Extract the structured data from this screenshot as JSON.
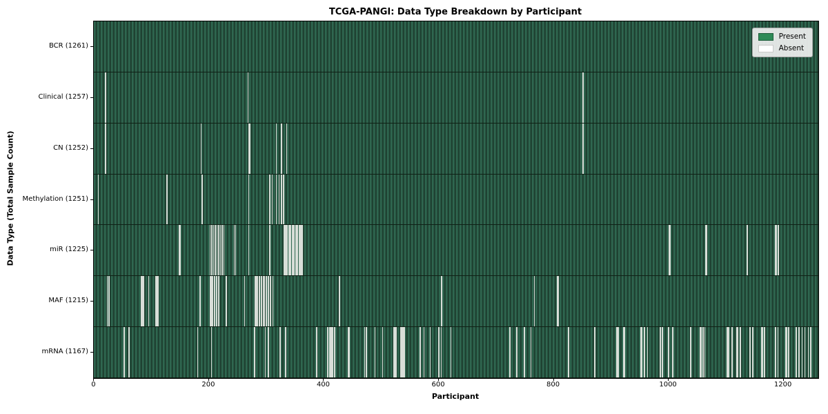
{
  "title": "TCGA-PANGI: Data Type Breakdown by Participant",
  "colors": {
    "present": "#2e8b57",
    "absent": "#ffffff",
    "bar_stripe_light": "#2f6750",
    "bar_stripe_dark": "#1f4232",
    "absent_line": "#d8ded8",
    "row_separator": "#0f2015"
  },
  "chart_data": {
    "type": "heatmap",
    "title": "TCGA-PANGI: Data Type Breakdown by Participant",
    "xlabel": "Participant",
    "ylabel": "Data Type (Total Sample Count)",
    "legend": [
      "Present",
      "Absent"
    ],
    "legend_position": "upper right",
    "total_participants": 1261,
    "xlim": [
      0,
      1261
    ],
    "x_ticks": [
      0,
      200,
      400,
      600,
      800,
      1000,
      1200
    ],
    "grid": false,
    "cell_values": {
      "present": 1,
      "absent": 0
    },
    "rows": [
      {
        "label": "BCR (1261)",
        "data_type": "BCR",
        "present_count": 1261,
        "absent_count": 0,
        "absent_indices": []
      },
      {
        "label": "Clinical (1257)",
        "data_type": "Clinical",
        "present_count": 1257,
        "absent_count": 4,
        "absent_indices": [
          19,
          20,
          268,
          851
        ]
      },
      {
        "label": "CN (1252)",
        "data_type": "CN",
        "present_count": 1252,
        "absent_count": 9,
        "absent_indices": [
          19,
          20,
          186,
          269,
          271,
          317,
          326,
          335,
          851
        ]
      },
      {
        "label": "Methylation (1251)",
        "data_type": "Methylation",
        "present_count": 1251,
        "absent_count": 10,
        "absent_indices": [
          7,
          127,
          188,
          269,
          306,
          310,
          317,
          322,
          326,
          330
        ]
      },
      {
        "label": "miR (1225)",
        "data_type": "miR",
        "present_count": 1225,
        "absent_count": 36,
        "absent_indices": [
          148,
          150,
          202,
          205,
          208,
          211,
          214,
          217,
          220,
          223,
          226,
          244,
          246,
          269,
          306,
          331,
          333,
          336,
          339,
          342,
          345,
          348,
          351,
          354,
          357,
          360,
          362,
          1001,
          1003,
          1064,
          1066,
          1137,
          1186,
          1187,
          1190,
          1191
        ]
      },
      {
        "label": "MAF (1215)",
        "data_type": "MAF",
        "present_count": 1215,
        "absent_count": 46,
        "absent_indices": [
          23,
          26,
          82,
          83,
          84,
          85,
          86,
          95,
          107,
          108,
          109,
          110,
          111,
          184,
          202,
          203,
          205,
          206,
          209,
          210,
          213,
          214,
          217,
          230,
          262,
          280,
          281,
          283,
          284,
          287,
          288,
          291,
          292,
          295,
          296,
          299,
          300,
          303,
          304,
          307,
          311,
          427,
          605,
          766,
          806,
          808
        ]
      },
      {
        "label": "mRNA (1167)",
        "data_type": "mRNA",
        "present_count": 1167,
        "absent_count": 94,
        "absent_indices": [
          52,
          61,
          180,
          204,
          279,
          298,
          303,
          324,
          333,
          387,
          406,
          407,
          410,
          411,
          414,
          415,
          418,
          419,
          442,
          444,
          471,
          474,
          489,
          502,
          521,
          522,
          524,
          526,
          534,
          535,
          537,
          538,
          540,
          567,
          568,
          574,
          585,
          600,
          604,
          621,
          723,
          724,
          735,
          736,
          748,
          749,
          760,
          826,
          871,
          910,
          911,
          912,
          922,
          923,
          952,
          953,
          958,
          963,
          985,
          986,
          989,
          999,
          1000,
          1007,
          1038,
          1039,
          1055,
          1056,
          1060,
          1063,
          1102,
          1103,
          1105,
          1110,
          1119,
          1120,
          1125,
          1141,
          1142,
          1146,
          1162,
          1163,
          1167,
          1186,
          1190,
          1204,
          1205,
          1209,
          1222,
          1227,
          1232,
          1237,
          1243,
          1247
        ]
      }
    ]
  }
}
